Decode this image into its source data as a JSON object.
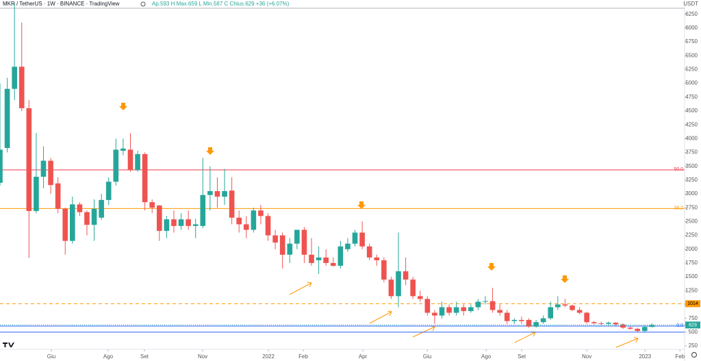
{
  "chart_data": {
    "type": "candlestick",
    "title": "MKR / TetherUS · 1W · BINANCE · TradingView",
    "ohlc_text": "Ap.593 H Max.659 L Min.587 C Chius.629 +36 (+6.07%)",
    "currency": "USDT",
    "up_color": "#26a69a",
    "down_color": "#ef5350",
    "opens": [
      3200,
      3830,
      4900,
      5300,
      4550,
      2690,
      3310,
      3600,
      3190,
      2730,
      2150,
      2810,
      2670,
      2440,
      2570,
      2890,
      3220,
      3780,
      3800,
      3430,
      3720,
      2850,
      2790,
      2330,
      2540,
      2420,
      2540,
      2420,
      2420,
      2980,
      3050,
      2950,
      3060,
      2570,
      2450,
      2350,
      2700,
      2600,
      2250,
      2250,
      1900,
      2100,
      2350,
      1900,
      1800,
      1850,
      1750,
      1700,
      2000,
      2100,
      2300,
      2050,
      1850,
      1800,
      1450,
      1150,
      1600,
      1450,
      1150,
      1100,
      850,
      800,
      950,
      850,
      950,
      880,
      950,
      1050,
      1060,
      900,
      850,
      700,
      720,
      720,
      600,
      680,
      750,
      950,
      1000,
      980,
      900,
      850,
      680,
      660,
      650,
      670,
      640,
      580,
      560,
      520,
      593
    ],
    "highs": [
      5000,
      5100,
      6450,
      6100,
      4700,
      4100,
      3860,
      3650,
      3300,
      2750,
      2950,
      2850,
      2700,
      2900,
      3000,
      3300,
      4000,
      4000,
      4100,
      3780,
      3750,
      2900,
      2800,
      2600,
      2700,
      2650,
      2700,
      2550,
      3650,
      3500,
      3300,
      3450,
      3300,
      2700,
      2600,
      2750,
      2800,
      2650,
      2350,
      2300,
      2200,
      2350,
      2400,
      2200,
      2050,
      2000,
      1850,
      2150,
      2200,
      2350,
      2500,
      2100,
      1900,
      1850,
      1500,
      2300,
      1850,
      1500,
      1250,
      1150,
      900,
      1050,
      1000,
      1050,
      1000,
      1000,
      1100,
      1150,
      1300,
      1000,
      900,
      750,
      780,
      750,
      720,
      800,
      1050,
      1150,
      1100,
      1000,
      950,
      870,
      700,
      690,
      690,
      680,
      660,
      600,
      580,
      620,
      659
    ],
    "lows": [
      3150,
      3750,
      4700,
      4500,
      1840,
      2650,
      3100,
      3000,
      2650,
      1900,
      2100,
      2600,
      2250,
      2150,
      2530,
      2800,
      3150,
      3700,
      3400,
      3400,
      2700,
      2650,
      2150,
      2200,
      2300,
      2350,
      2350,
      2200,
      2380,
      2700,
      2750,
      2800,
      2450,
      2300,
      2200,
      2300,
      2450,
      2150,
      2000,
      1650,
      1750,
      2000,
      1750,
      1700,
      1550,
      1700,
      1680,
      1650,
      1950,
      2050,
      2000,
      1800,
      1700,
      1400,
      1100,
      950,
      1350,
      1100,
      1050,
      800,
      650,
      750,
      800,
      800,
      800,
      850,
      900,
      1000,
      850,
      800,
      650,
      650,
      650,
      580,
      580,
      650,
      720,
      900,
      950,
      880,
      820,
      650,
      640,
      630,
      620,
      610,
      560,
      540,
      500,
      500,
      587
    ],
    "closes": [
      3800,
      4900,
      5300,
      4550,
      2690,
      3310,
      3600,
      3160,
      2730,
      2150,
      2810,
      2670,
      2440,
      2730,
      2890,
      3220,
      3800,
      3820,
      3430,
      3720,
      2850,
      2750,
      2330,
      2540,
      2420,
      2540,
      2420,
      2450,
      2980,
      3050,
      2950,
      3050,
      2570,
      2450,
      2350,
      2700,
      2600,
      2250,
      2120,
      1900,
      2100,
      2350,
      1900,
      1750,
      1850,
      1750,
      1700,
      2050,
      2100,
      2300,
      2050,
      1850,
      1800,
      1450,
      1150,
      1600,
      1450,
      1150,
      1100,
      850,
      800,
      950,
      850,
      950,
      880,
      950,
      1050,
      1060,
      900,
      850,
      700,
      720,
      700,
      600,
      680,
      750,
      950,
      1000,
      980,
      900,
      850,
      680,
      660,
      650,
      670,
      640,
      580,
      560,
      520,
      593,
      629
    ],
    "xlim": [
      0,
      94.5
    ],
    "xticks": [
      {
        "value": 7.09,
        "label": "Giu"
      },
      {
        "value": 14.93,
        "label": "Ago"
      },
      {
        "value": 19.94,
        "label": "Set"
      },
      {
        "value": 27.98,
        "label": "Nov"
      },
      {
        "value": 37.05,
        "label": "2022"
      },
      {
        "value": 41.87,
        "label": "Feb"
      },
      {
        "value": 50.09,
        "label": "Apr"
      },
      {
        "value": 58.98,
        "label": "Giu"
      },
      {
        "value": 67.11,
        "label": "Ago"
      },
      {
        "value": 72.02,
        "label": "Set"
      },
      {
        "value": 81.0,
        "label": "Nov"
      },
      {
        "value": 89.04,
        "label": "2023"
      },
      {
        "value": 93.86,
        "label": "Feb"
      }
    ],
    "ylim": [
      188,
      6507
    ],
    "yticks": [
      250,
      500,
      750,
      1000,
      1250,
      1500,
      1750,
      2000,
      2250,
      2500,
      2750,
      3000,
      3250,
      3500,
      3750,
      4000,
      4250,
      4500,
      4750,
      5000,
      5250,
      5500,
      5750,
      6000,
      6250
    ],
    "levels": [
      {
        "value": 3435,
        "label": "50.0",
        "color": "#f23645"
      },
      {
        "value": 2735,
        "label": "38.2",
        "color": "#ff9800"
      },
      {
        "value": 1014,
        "color": "#ff9800",
        "dashed": true
      },
      {
        "value": 610,
        "label": "0.0",
        "color": "#2962ff"
      },
      {
        "value": 500,
        "color": "#2962ff"
      }
    ]
  }
}
